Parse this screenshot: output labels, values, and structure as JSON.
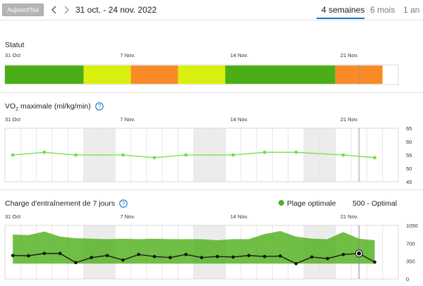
{
  "toolbar": {
    "today_label": "Aujourd'hui",
    "date_range": "31 oct. - 24 nov. 2022",
    "tabs": [
      {
        "label": "4 semaines",
        "active": true
      },
      {
        "label": "6 mois",
        "active": false
      },
      {
        "label": "1 an",
        "active": false
      }
    ],
    "accent_color": "#1a73c4"
  },
  "date_axis": {
    "labels": [
      "31 Oct",
      "7 Nov.",
      "14 Nov.",
      "21 Nov."
    ],
    "label_day_index": [
      0,
      7,
      14,
      21
    ]
  },
  "status_section": {
    "title": "Statut",
    "segments": [
      {
        "days": 5,
        "color": "#4cae16"
      },
      {
        "days": 3,
        "color": "#d9f00f"
      },
      {
        "days": 3,
        "color": "#f98b27"
      },
      {
        "days": 3,
        "color": "#d9f00f"
      },
      {
        "days": 7,
        "color": "#4cae16"
      },
      {
        "days": 3,
        "color": "#f98b27"
      }
    ]
  },
  "vo2_section": {
    "title_prefix": "VO",
    "title_sub": "2",
    "title_suffix": " maximale (ml/kg/min)"
  },
  "load_section": {
    "title": "Charge d'entraînement de 7 jours",
    "legend_label": "Plage optimale",
    "legend_color": "#4cae16",
    "current_value_text": "500 - Optimal"
  },
  "chart_data": [
    {
      "type": "line",
      "title": "VO2 maximale (ml/kg/min)",
      "x_unit": "day offset from 31 Oct",
      "y_ticks": [
        65,
        60,
        55,
        50,
        45
      ],
      "ylim": [
        45,
        65
      ],
      "series": [
        {
          "color": "#6fe244",
          "x": [
            0,
            2,
            4,
            7,
            9,
            11,
            14,
            16,
            18,
            21,
            23
          ],
          "values": [
            55,
            56,
            55,
            55,
            54,
            55,
            55,
            56,
            56,
            55,
            54
          ]
        }
      ]
    },
    {
      "type": "line",
      "title": "Charge d'entraînement de 7 jours",
      "x_unit": "day offset from 31 Oct",
      "y_ticks": [
        1050,
        700,
        350,
        0
      ],
      "ylim": [
        0,
        1050
      ],
      "optimal_range": {
        "color": "#4cae16",
        "x": [
          0,
          1,
          2,
          3,
          4,
          5,
          6,
          7,
          8,
          9,
          10,
          11,
          12,
          13,
          14,
          15,
          16,
          17,
          18,
          19,
          20,
          21,
          22,
          23
        ],
        "upper": [
          870,
          860,
          930,
          830,
          800,
          790,
          780,
          790,
          780,
          790,
          780,
          780,
          780,
          760,
          780,
          780,
          880,
          940,
          830,
          790,
          780,
          920,
          790,
          760
        ],
        "lower": [
          300,
          300,
          300,
          300,
          300,
          300,
          300,
          300,
          300,
          300,
          300,
          300,
          300,
          300,
          300,
          300,
          300,
          300,
          300,
          300,
          300,
          300,
          300,
          300
        ]
      },
      "series": [
        {
          "color": "#111111",
          "x": [
            0,
            1,
            2,
            3,
            4,
            5,
            6,
            7,
            8,
            9,
            10,
            11,
            12,
            13,
            14,
            15,
            16,
            17,
            18,
            19,
            20,
            21,
            22,
            23
          ],
          "values": [
            460,
            455,
            500,
            500,
            320,
            420,
            460,
            370,
            480,
            440,
            420,
            480,
            420,
            440,
            430,
            460,
            440,
            450,
            300,
            430,
            400,
            480,
            500,
            330
          ]
        }
      ],
      "highlight_day": 22
    }
  ]
}
